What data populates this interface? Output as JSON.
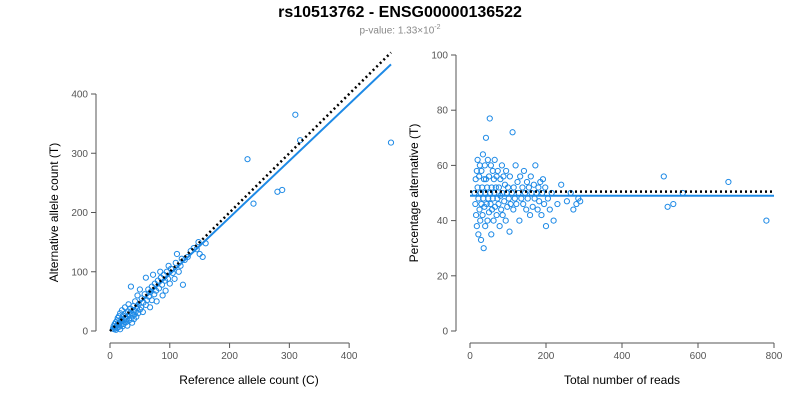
{
  "header": {
    "title": "rs10513762 - ENSG00000136522",
    "pvalue_prefix": "p-value: 1.33×10",
    "pvalue_exponent": "-2"
  },
  "colors": {
    "points": "#1e8ae6",
    "fit_line": "#1e8ae6",
    "reference_line": "#000000",
    "axis": "#555555"
  },
  "chart_data": [
    {
      "type": "scatter",
      "title": "",
      "xlabel": "Reference allele count (C)",
      "ylabel": "Alternative allele count (T)",
      "xlim": [
        0,
        465
      ],
      "ylim": [
        0,
        400
      ],
      "xticks": [
        0,
        100,
        200,
        300,
        400
      ],
      "yticks": [
        0,
        100,
        200,
        300,
        400
      ],
      "grid": false,
      "points": [
        [
          5,
          4
        ],
        [
          6,
          8
        ],
        [
          7,
          3
        ],
        [
          8,
          12
        ],
        [
          9,
          6
        ],
        [
          10,
          15
        ],
        [
          10,
          2
        ],
        [
          11,
          9
        ],
        [
          12,
          18
        ],
        [
          12,
          5
        ],
        [
          13,
          22
        ],
        [
          14,
          11
        ],
        [
          15,
          7
        ],
        [
          15,
          25
        ],
        [
          16,
          14
        ],
        [
          17,
          30
        ],
        [
          17,
          3
        ],
        [
          18,
          10
        ],
        [
          19,
          20
        ],
        [
          20,
          16
        ],
        [
          20,
          35
        ],
        [
          21,
          8
        ],
        [
          22,
          26
        ],
        [
          23,
          12
        ],
        [
          24,
          18
        ],
        [
          25,
          40
        ],
        [
          25,
          22
        ],
        [
          26,
          30
        ],
        [
          27,
          15
        ],
        [
          28,
          20
        ],
        [
          29,
          9
        ],
        [
          30,
          33
        ],
        [
          30,
          25
        ],
        [
          31,
          45
        ],
        [
          32,
          18
        ],
        [
          33,
          28
        ],
        [
          34,
          38
        ],
        [
          35,
          22
        ],
        [
          35,
          75
        ],
        [
          36,
          30
        ],
        [
          37,
          14
        ],
        [
          38,
          26
        ],
        [
          39,
          42
        ],
        [
          40,
          35
        ],
        [
          40,
          20
        ],
        [
          41,
          28
        ],
        [
          42,
          50
        ],
        [
          43,
          33
        ],
        [
          44,
          24
        ],
        [
          45,
          38
        ],
        [
          46,
          60
        ],
        [
          47,
          30
        ],
        [
          48,
          45
        ],
        [
          50,
          36
        ],
        [
          50,
          70
        ],
        [
          52,
          40
        ],
        [
          53,
          55
        ],
        [
          55,
          32
        ],
        [
          56,
          48
        ],
        [
          58,
          62
        ],
        [
          60,
          44
        ],
        [
          60,
          90
        ],
        [
          62,
          52
        ],
        [
          64,
          70
        ],
        [
          65,
          58
        ],
        [
          67,
          40
        ],
        [
          68,
          66
        ],
        [
          70,
          75
        ],
        [
          70,
          52
        ],
        [
          72,
          95
        ],
        [
          74,
          62
        ],
        [
          75,
          80
        ],
        [
          77,
          68
        ],
        [
          78,
          50
        ],
        [
          80,
          85
        ],
        [
          82,
          72
        ],
        [
          84,
          100
        ],
        [
          85,
          90
        ],
        [
          87,
          78
        ],
        [
          88,
          60
        ],
        [
          90,
          95
        ],
        [
          92,
          85
        ],
        [
          93,
          68
        ],
        [
          95,
          100
        ],
        [
          97,
          88
        ],
        [
          98,
          110
        ],
        [
          100,
          80
        ],
        [
          102,
          105
        ],
        [
          105,
          98
        ],
        [
          108,
          88
        ],
        [
          110,
          115
        ],
        [
          112,
          130
        ],
        [
          115,
          100
        ],
        [
          118,
          110
        ],
        [
          120,
          122
        ],
        [
          122,
          78
        ],
        [
          125,
          120
        ],
        [
          130,
          125
        ],
        [
          135,
          135
        ],
        [
          140,
          140
        ],
        [
          145,
          138
        ],
        [
          148,
          150
        ],
        [
          150,
          130
        ],
        [
          155,
          125
        ],
        [
          160,
          148
        ],
        [
          230,
          290
        ],
        [
          240,
          215
        ],
        [
          280,
          235
        ],
        [
          288,
          238
        ],
        [
          310,
          365
        ],
        [
          318,
          322
        ],
        [
          470,
          318
        ]
      ],
      "fit_line": [
        [
          0,
          0
        ],
        [
          470,
          450
        ]
      ],
      "reference_line": [
        [
          0,
          0
        ],
        [
          470,
          470
        ]
      ]
    },
    {
      "type": "scatter",
      "title": "",
      "xlabel": "Total number of reads",
      "ylabel": "Percentage alternative (T)",
      "xlim": [
        0,
        800
      ],
      "ylim": [
        0,
        100
      ],
      "xticks": [
        0,
        200,
        400,
        600,
        800
      ],
      "yticks": [
        0,
        20,
        40,
        60,
        80,
        100
      ],
      "grid": false,
      "points": [
        [
          12,
          50
        ],
        [
          14,
          46
        ],
        [
          15,
          55
        ],
        [
          16,
          42
        ],
        [
          18,
          58
        ],
        [
          18,
          38
        ],
        [
          20,
          52
        ],
        [
          20,
          62
        ],
        [
          22,
          48
        ],
        [
          22,
          35
        ],
        [
          24,
          56
        ],
        [
          25,
          44
        ],
        [
          26,
          60
        ],
        [
          27,
          40
        ],
        [
          28,
          50
        ],
        [
          29,
          33
        ],
        [
          30,
          58
        ],
        [
          30,
          46
        ],
        [
          32,
          52
        ],
        [
          33,
          42
        ],
        [
          34,
          64
        ],
        [
          35,
          48
        ],
        [
          36,
          30
        ],
        [
          37,
          55
        ],
        [
          38,
          45
        ],
        [
          39,
          60
        ],
        [
          40,
          50
        ],
        [
          40,
          38
        ],
        [
          42,
          70
        ],
        [
          42,
          55
        ],
        [
          44,
          46
        ],
        [
          45,
          52
        ],
        [
          46,
          40
        ],
        [
          47,
          62
        ],
        [
          48,
          48
        ],
        [
          50,
          56
        ],
        [
          50,
          43
        ],
        [
          52,
          77
        ],
        [
          53,
          50
        ],
        [
          54,
          46
        ],
        [
          55,
          60
        ],
        [
          56,
          35
        ],
        [
          57,
          52
        ],
        [
          58,
          44
        ],
        [
          60,
          58
        ],
        [
          60,
          48
        ],
        [
          62,
          40
        ],
        [
          63,
          55
        ],
        [
          64,
          50
        ],
        [
          65,
          62
        ],
        [
          66,
          45
        ],
        [
          68,
          52
        ],
        [
          70,
          42
        ],
        [
          70,
          56
        ],
        [
          72,
          48
        ],
        [
          73,
          58
        ],
        [
          75,
          46
        ],
        [
          76,
          52
        ],
        [
          78,
          38
        ],
        [
          80,
          55
        ],
        [
          80,
          49
        ],
        [
          82,
          44
        ],
        [
          84,
          60
        ],
        [
          85,
          50
        ],
        [
          86,
          42
        ],
        [
          88,
          56
        ],
        [
          90,
          47
        ],
        [
          92,
          53
        ],
        [
          94,
          40
        ],
        [
          95,
          58
        ],
        [
          97,
          50
        ],
        [
          98,
          45
        ],
        [
          100,
          52
        ],
        [
          102,
          48
        ],
        [
          104,
          36
        ],
        [
          105,
          56
        ],
        [
          107,
          46
        ],
        [
          110,
          50
        ],
        [
          112,
          72
        ],
        [
          114,
          44
        ],
        [
          115,
          52
        ],
        [
          118,
          48
        ],
        [
          120,
          60
        ],
        [
          122,
          46
        ],
        [
          125,
          54
        ],
        [
          128,
          50
        ],
        [
          130,
          40
        ],
        [
          132,
          56
        ],
        [
          135,
          48
        ],
        [
          138,
          52
        ],
        [
          140,
          46
        ],
        [
          142,
          58
        ],
        [
          145,
          50
        ],
        [
          148,
          44
        ],
        [
          150,
          54
        ],
        [
          152,
          48
        ],
        [
          155,
          52
        ],
        [
          158,
          42
        ],
        [
          160,
          56
        ],
        [
          162,
          50
        ],
        [
          165,
          45
        ],
        [
          168,
          53
        ],
        [
          170,
          48
        ],
        [
          172,
          60
        ],
        [
          175,
          50
        ],
        [
          178,
          44
        ],
        [
          180,
          52
        ],
        [
          182,
          47
        ],
        [
          185,
          54
        ],
        [
          188,
          42
        ],
        [
          190,
          50
        ],
        [
          192,
          55
        ],
        [
          195,
          46
        ],
        [
          198,
          52
        ],
        [
          200,
          38
        ],
        [
          205,
          48
        ],
        [
          210,
          44
        ],
        [
          215,
          50
        ],
        [
          220,
          40
        ],
        [
          230,
          46
        ],
        [
          240,
          53
        ],
        [
          255,
          47
        ],
        [
          265,
          50
        ],
        [
          272,
          44
        ],
        [
          280,
          46
        ],
        [
          285,
          48
        ],
        [
          290,
          47
        ],
        [
          510,
          56
        ],
        [
          520,
          45
        ],
        [
          535,
          46
        ],
        [
          560,
          50
        ],
        [
          680,
          54
        ],
        [
          780,
          40
        ]
      ],
      "fit_line": [
        [
          0,
          49
        ],
        [
          800,
          49
        ]
      ],
      "reference_line": [
        [
          0,
          50.5
        ],
        [
          800,
          50.5
        ]
      ]
    }
  ]
}
